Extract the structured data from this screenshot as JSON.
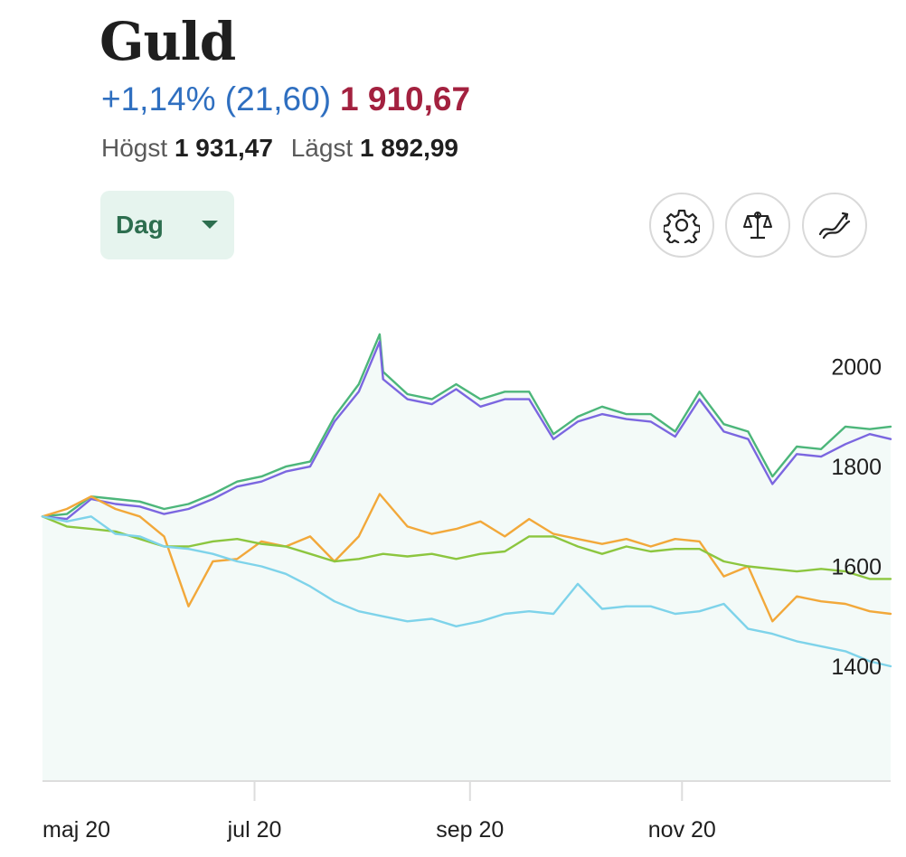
{
  "header": {
    "title": "Guld",
    "change": "+1,14% (21,60)",
    "price": "1 910,67",
    "high_label": "Högst",
    "high_value": "1 931,47",
    "low_label": "Lägst",
    "low_value": "1 892,99"
  },
  "controls": {
    "period_label": "Dag",
    "settings_icon": "gear-icon",
    "compare_icon": "balance-scale-icon",
    "indicator_icon": "trend-lines-icon"
  },
  "colors": {
    "change": "#2f6fc0",
    "price": "#a3213f",
    "dropdown_bg": "#e6f4ee",
    "dropdown_text": "#2d6e4f",
    "area_fill": "#f3faf8"
  },
  "chart_data": {
    "type": "line",
    "xlabel": "",
    "ylabel": "",
    "ylim": [
      1170,
      2070
    ],
    "y_ticks": [
      1400,
      1600,
      1800,
      2000
    ],
    "y_tick_labels": [
      "1400",
      "1600",
      "1800",
      "2000"
    ],
    "x_ticks": [
      "maj 20",
      "jul 20",
      "sep 20",
      "nov 20"
    ],
    "x_range": [
      "2020-05-01",
      "2020-12-31"
    ],
    "grid": false,
    "legend": "none",
    "series": [
      {
        "color": "#4cb67a",
        "fill": true,
        "x": [
          "2020-05-01",
          "2020-05-08",
          "2020-05-15",
          "2020-05-22",
          "2020-05-29",
          "2020-06-05",
          "2020-06-12",
          "2020-06-19",
          "2020-06-26",
          "2020-07-03",
          "2020-07-10",
          "2020-07-17",
          "2020-07-24",
          "2020-07-31",
          "2020-08-06",
          "2020-08-07",
          "2020-08-14",
          "2020-08-21",
          "2020-08-28",
          "2020-09-04",
          "2020-09-11",
          "2020-09-18",
          "2020-09-25",
          "2020-10-02",
          "2020-10-09",
          "2020-10-16",
          "2020-10-23",
          "2020-10-30",
          "2020-11-06",
          "2020-11-13",
          "2020-11-20",
          "2020-11-27",
          "2020-12-04",
          "2020-12-11",
          "2020-12-18",
          "2020-12-25",
          "2020-12-31"
        ],
        "values": [
          1700,
          1705,
          1740,
          1735,
          1730,
          1715,
          1725,
          1745,
          1770,
          1780,
          1800,
          1810,
          1900,
          1965,
          2065,
          1990,
          1945,
          1935,
          1965,
          1935,
          1950,
          1950,
          1865,
          1900,
          1920,
          1905,
          1905,
          1870,
          1950,
          1885,
          1870,
          1780,
          1840,
          1835,
          1880,
          1875,
          1880
        ]
      },
      {
        "color": "#7b66e0",
        "fill": false,
        "x": [
          "2020-05-01",
          "2020-05-08",
          "2020-05-15",
          "2020-05-22",
          "2020-05-29",
          "2020-06-05",
          "2020-06-12",
          "2020-06-19",
          "2020-06-26",
          "2020-07-03",
          "2020-07-10",
          "2020-07-17",
          "2020-07-24",
          "2020-07-31",
          "2020-08-06",
          "2020-08-07",
          "2020-08-14",
          "2020-08-21",
          "2020-08-28",
          "2020-09-04",
          "2020-09-11",
          "2020-09-18",
          "2020-09-25",
          "2020-10-02",
          "2020-10-09",
          "2020-10-16",
          "2020-10-23",
          "2020-10-30",
          "2020-11-06",
          "2020-11-13",
          "2020-11-20",
          "2020-11-27",
          "2020-12-04",
          "2020-12-11",
          "2020-12-18",
          "2020-12-25",
          "2020-12-31"
        ],
        "values": [
          1700,
          1695,
          1735,
          1725,
          1720,
          1705,
          1715,
          1735,
          1760,
          1770,
          1790,
          1800,
          1890,
          1950,
          2050,
          1975,
          1935,
          1925,
          1955,
          1920,
          1935,
          1935,
          1855,
          1890,
          1905,
          1895,
          1890,
          1860,
          1935,
          1870,
          1855,
          1765,
          1825,
          1820,
          1845,
          1865,
          1855
        ]
      },
      {
        "color": "#f2a83a",
        "fill": false,
        "x": [
          "2020-05-01",
          "2020-05-08",
          "2020-05-15",
          "2020-05-22",
          "2020-05-29",
          "2020-06-05",
          "2020-06-12",
          "2020-06-19",
          "2020-06-26",
          "2020-07-03",
          "2020-07-10",
          "2020-07-17",
          "2020-07-24",
          "2020-07-31",
          "2020-08-06",
          "2020-08-14",
          "2020-08-21",
          "2020-08-28",
          "2020-09-04",
          "2020-09-11",
          "2020-09-18",
          "2020-09-25",
          "2020-10-02",
          "2020-10-09",
          "2020-10-16",
          "2020-10-23",
          "2020-10-30",
          "2020-11-06",
          "2020-11-13",
          "2020-11-20",
          "2020-11-27",
          "2020-12-04",
          "2020-12-11",
          "2020-12-18",
          "2020-12-25",
          "2020-12-31"
        ],
        "values": [
          1700,
          1715,
          1740,
          1715,
          1700,
          1660,
          1520,
          1610,
          1615,
          1650,
          1640,
          1660,
          1610,
          1660,
          1745,
          1680,
          1665,
          1675,
          1690,
          1660,
          1695,
          1665,
          1655,
          1645,
          1655,
          1640,
          1655,
          1650,
          1580,
          1600,
          1490,
          1540,
          1530,
          1525,
          1510,
          1505
        ]
      },
      {
        "color": "#8cc63f",
        "fill": false,
        "x": [
          "2020-05-01",
          "2020-05-08",
          "2020-05-15",
          "2020-05-22",
          "2020-05-29",
          "2020-06-05",
          "2020-06-12",
          "2020-06-19",
          "2020-06-26",
          "2020-07-03",
          "2020-07-10",
          "2020-07-17",
          "2020-07-24",
          "2020-07-31",
          "2020-08-07",
          "2020-08-14",
          "2020-08-21",
          "2020-08-28",
          "2020-09-04",
          "2020-09-11",
          "2020-09-18",
          "2020-09-25",
          "2020-10-02",
          "2020-10-09",
          "2020-10-16",
          "2020-10-23",
          "2020-10-30",
          "2020-11-06",
          "2020-11-13",
          "2020-11-20",
          "2020-11-27",
          "2020-12-04",
          "2020-12-11",
          "2020-12-18",
          "2020-12-25",
          "2020-12-31"
        ],
        "values": [
          1700,
          1680,
          1675,
          1670,
          1655,
          1640,
          1640,
          1650,
          1655,
          1645,
          1640,
          1625,
          1610,
          1615,
          1625,
          1620,
          1625,
          1615,
          1625,
          1630,
          1660,
          1660,
          1640,
          1625,
          1640,
          1630,
          1635,
          1635,
          1610,
          1600,
          1595,
          1590,
          1595,
          1590,
          1575,
          1575
        ]
      },
      {
        "color": "#7ed3ea",
        "fill": false,
        "x": [
          "2020-05-01",
          "2020-05-08",
          "2020-05-15",
          "2020-05-22",
          "2020-05-29",
          "2020-06-05",
          "2020-06-12",
          "2020-06-19",
          "2020-06-26",
          "2020-07-03",
          "2020-07-10",
          "2020-07-17",
          "2020-07-24",
          "2020-07-31",
          "2020-08-07",
          "2020-08-14",
          "2020-08-21",
          "2020-08-28",
          "2020-09-04",
          "2020-09-11",
          "2020-09-18",
          "2020-09-25",
          "2020-10-02",
          "2020-10-09",
          "2020-10-16",
          "2020-10-23",
          "2020-10-30",
          "2020-11-06",
          "2020-11-13",
          "2020-11-20",
          "2020-11-27",
          "2020-12-04",
          "2020-12-11",
          "2020-12-18",
          "2020-12-25",
          "2020-12-31"
        ],
        "values": [
          1700,
          1690,
          1700,
          1665,
          1660,
          1640,
          1635,
          1625,
          1610,
          1600,
          1585,
          1560,
          1530,
          1510,
          1500,
          1490,
          1495,
          1480,
          1490,
          1505,
          1510,
          1505,
          1565,
          1515,
          1520,
          1520,
          1505,
          1510,
          1525,
          1475,
          1465,
          1450,
          1440,
          1430,
          1410,
          1400
        ]
      }
    ]
  }
}
